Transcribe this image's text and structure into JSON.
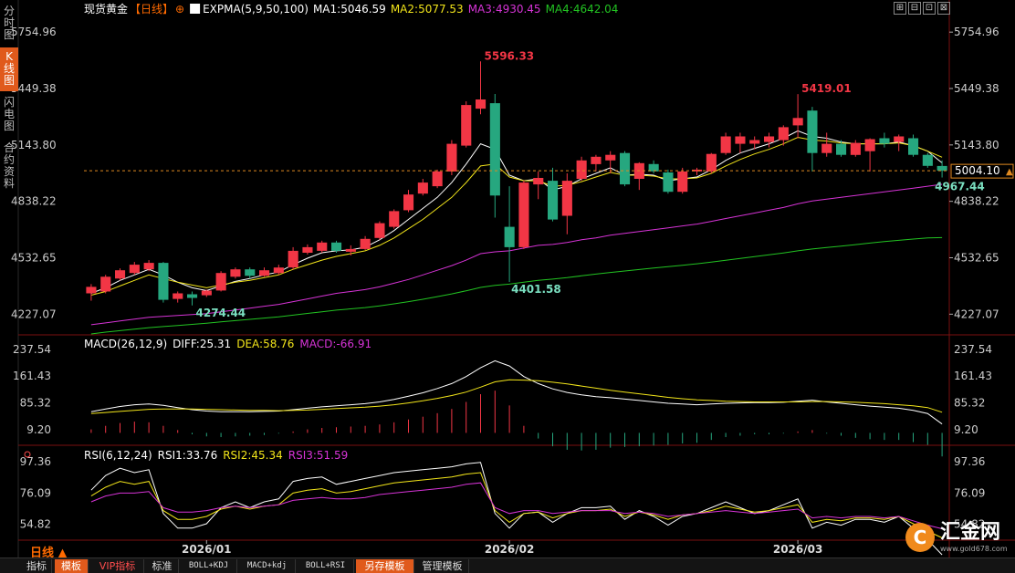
{
  "left_tabs": [
    {
      "label": "分时图",
      "active": false
    },
    {
      "label": "K线图",
      "active": true
    },
    {
      "label": "闪电图",
      "active": false
    },
    {
      "label": "合约资料",
      "active": false
    }
  ],
  "header": {
    "instrument": "现货黄金",
    "period_tag": "【日线】",
    "add_symbol": "⊕",
    "ind_main": "EXPMA(5,9,50,100)",
    "ma1": "MA1:5046.59",
    "ma2": "MA2:5077.53",
    "ma3": "MA3:4930.45",
    "ma4": "MA4:4642.04"
  },
  "toolbar_icons": [
    "⊞",
    "⊟",
    "⊡",
    "⊠"
  ],
  "colors": {
    "up": "#f23645",
    "down": "#26a77f",
    "ma1": "#ffffff",
    "ma2": "#f2e51a",
    "ma3": "#d633d6",
    "ma4": "#22c322",
    "grid": "#3a1010",
    "price_axis": "#cccccc",
    "accent": "#e05a1c"
  },
  "price_axis": [
    "5754.96",
    "5449.38",
    "5143.80",
    "4838.22",
    "4532.65",
    "4227.07"
  ],
  "macd_axis": [
    "237.54",
    "161.43",
    "85.32",
    "9.20"
  ],
  "rsi_axis": [
    "97.36",
    "76.09",
    "54.82"
  ],
  "current_price": "5004.10",
  "annotations": {
    "high": "5596.33",
    "low": "4401.58",
    "high2": "5419.01",
    "low0": "4274.44",
    "last_low": "4967.44"
  },
  "macd_header": {
    "name": "MACD(26,12,9)",
    "diff": "DIFF:25.31",
    "dea": "DEA:58.76",
    "macd": "MACD:-66.91"
  },
  "rsi_header": {
    "name": "RSI(6,12,24)",
    "rsi1": "RSI1:33.76",
    "rsi2": "RSI2:45.34",
    "rsi3": "RSI3:51.59"
  },
  "x_labels": [
    {
      "label": "2026/01",
      "index": 8
    },
    {
      "label": "2026/02",
      "index": 29
    },
    {
      "label": "2026/03",
      "index": 49
    }
  ],
  "period_label": "日线 ▲",
  "bottom_buttons": [
    {
      "label": "指标",
      "style": "plain"
    },
    {
      "label": "模板",
      "style": "orange"
    },
    {
      "label": "VIP指标",
      "style": "vip"
    },
    {
      "label": "标准",
      "style": "plain"
    },
    {
      "label": "BOLL+KDJ",
      "style": "small"
    },
    {
      "label": "MACD+kdj",
      "style": "small"
    },
    {
      "label": "BOLL+RSI",
      "style": "small"
    },
    {
      "label": "另存模板",
      "style": "orange"
    },
    {
      "label": "管理模板",
      "style": "plain"
    }
  ],
  "logo": {
    "name": "汇金网",
    "url": "www.gold678.com"
  },
  "chart_data": {
    "type": "candlestick",
    "ylim": [
      4120,
      5830
    ],
    "candles": [
      {
        "o": 4340,
        "h": 4390,
        "l": 4300,
        "c": 4375
      },
      {
        "o": 4350,
        "h": 4440,
        "l": 4340,
        "c": 4430
      },
      {
        "o": 4420,
        "h": 4475,
        "l": 4410,
        "c": 4465
      },
      {
        "o": 4450,
        "h": 4510,
        "l": 4440,
        "c": 4495
      },
      {
        "o": 4470,
        "h": 4520,
        "l": 4460,
        "c": 4505
      },
      {
        "o": 4505,
        "h": 4510,
        "l": 4290,
        "c": 4305
      },
      {
        "o": 4310,
        "h": 4350,
        "l": 4290,
        "c": 4340
      },
      {
        "o": 4335,
        "h": 4350,
        "l": 4274.44,
        "c": 4315
      },
      {
        "o": 4330,
        "h": 4360,
        "l": 4320,
        "c": 4355
      },
      {
        "o": 4355,
        "h": 4460,
        "l": 4350,
        "c": 4450
      },
      {
        "o": 4430,
        "h": 4480,
        "l": 4420,
        "c": 4470
      },
      {
        "o": 4470,
        "h": 4480,
        "l": 4420,
        "c": 4435
      },
      {
        "o": 4435,
        "h": 4480,
        "l": 4430,
        "c": 4465
      },
      {
        "o": 4450,
        "h": 4495,
        "l": 4440,
        "c": 4480
      },
      {
        "o": 4480,
        "h": 4590,
        "l": 4470,
        "c": 4570
      },
      {
        "o": 4560,
        "h": 4605,
        "l": 4550,
        "c": 4590
      },
      {
        "o": 4570,
        "h": 4625,
        "l": 4560,
        "c": 4615
      },
      {
        "o": 4615,
        "h": 4625,
        "l": 4560,
        "c": 4570
      },
      {
        "o": 4565,
        "h": 4600,
        "l": 4545,
        "c": 4580
      },
      {
        "o": 4580,
        "h": 4650,
        "l": 4575,
        "c": 4635
      },
      {
        "o": 4640,
        "h": 4730,
        "l": 4630,
        "c": 4720
      },
      {
        "o": 4700,
        "h": 4795,
        "l": 4690,
        "c": 4785
      },
      {
        "o": 4790,
        "h": 4900,
        "l": 4780,
        "c": 4875
      },
      {
        "o": 4880,
        "h": 4960,
        "l": 4870,
        "c": 4940
      },
      {
        "o": 4920,
        "h": 5010,
        "l": 4910,
        "c": 5000
      },
      {
        "o": 5000,
        "h": 5170,
        "l": 4980,
        "c": 5150
      },
      {
        "o": 5140,
        "h": 5380,
        "l": 5130,
        "c": 5360
      },
      {
        "o": 5340,
        "h": 5596.33,
        "l": 5310,
        "c": 5390
      },
      {
        "o": 5370,
        "h": 5420,
        "l": 4750,
        "c": 4870
      },
      {
        "o": 4700,
        "h": 4920,
        "l": 4401.58,
        "c": 4590
      },
      {
        "o": 4590,
        "h": 4950,
        "l": 4580,
        "c": 4940
      },
      {
        "o": 4930,
        "h": 5000,
        "l": 4850,
        "c": 4965
      },
      {
        "o": 4950,
        "h": 5020,
        "l": 4730,
        "c": 4740
      },
      {
        "o": 4760,
        "h": 4990,
        "l": 4660,
        "c": 4950
      },
      {
        "o": 4960,
        "h": 5080,
        "l": 4950,
        "c": 5060
      },
      {
        "o": 5040,
        "h": 5090,
        "l": 5000,
        "c": 5080
      },
      {
        "o": 5060,
        "h": 5110,
        "l": 4990,
        "c": 5090
      },
      {
        "o": 5100,
        "h": 5110,
        "l": 4920,
        "c": 4930
      },
      {
        "o": 4960,
        "h": 5050,
        "l": 4900,
        "c": 5045
      },
      {
        "o": 5040,
        "h": 5060,
        "l": 4990,
        "c": 5000
      },
      {
        "o": 4995,
        "h": 5010,
        "l": 4880,
        "c": 4890
      },
      {
        "o": 4890,
        "h": 5020,
        "l": 4880,
        "c": 5000
      },
      {
        "o": 5000,
        "h": 5020,
        "l": 4980,
        "c": 5010
      },
      {
        "o": 5000,
        "h": 5100,
        "l": 4990,
        "c": 5095
      },
      {
        "o": 5100,
        "h": 5210,
        "l": 5090,
        "c": 5190
      },
      {
        "o": 5150,
        "h": 5210,
        "l": 5100,
        "c": 5190
      },
      {
        "o": 5150,
        "h": 5190,
        "l": 5120,
        "c": 5170
      },
      {
        "o": 5160,
        "h": 5210,
        "l": 5130,
        "c": 5190
      },
      {
        "o": 5170,
        "h": 5250,
        "l": 5140,
        "c": 5240
      },
      {
        "o": 5250,
        "h": 5419.01,
        "l": 5180,
        "c": 5290
      },
      {
        "o": 5330,
        "h": 5350,
        "l": 5000,
        "c": 5100
      },
      {
        "o": 5100,
        "h": 5210,
        "l": 5080,
        "c": 5150
      },
      {
        "o": 5150,
        "h": 5170,
        "l": 5080,
        "c": 5090
      },
      {
        "o": 5090,
        "h": 5170,
        "l": 5080,
        "c": 5155
      },
      {
        "o": 5110,
        "h": 5180,
        "l": 5000,
        "c": 5175
      },
      {
        "o": 5180,
        "h": 5210,
        "l": 5130,
        "c": 5150
      },
      {
        "o": 5160,
        "h": 5200,
        "l": 5110,
        "c": 5190
      },
      {
        "o": 5180,
        "h": 5200,
        "l": 5080,
        "c": 5090
      },
      {
        "o": 5090,
        "h": 5100,
        "l": 5020,
        "c": 5030
      },
      {
        "o": 5030,
        "h": 5060,
        "l": 4967.44,
        "c": 5004.1
      }
    ],
    "ma_lines": [
      {
        "name": "MA1",
        "color": "#ffffff",
        "values": [
          4340,
          4370,
          4410,
          4440,
          4470,
          4440,
          4400,
          4370,
          4355,
          4380,
          4405,
          4420,
          4440,
          4455,
          4495,
          4530,
          4560,
          4570,
          4575,
          4590,
          4630,
          4680,
          4740,
          4800,
          4860,
          4940,
          5040,
          5150,
          5120,
          4980,
          4950,
          4960,
          4900,
          4920,
          4960,
          4990,
          5020,
          4980,
          4985,
          4980,
          4950,
          4960,
          4970,
          5010,
          5060,
          5100,
          5125,
          5150,
          5180,
          5220,
          5190,
          5180,
          5160,
          5150,
          5150,
          5150,
          5160,
          5140,
          5110,
          5046.59
        ]
      },
      {
        "name": "MA2",
        "color": "#f2e51a",
        "values": [
          4330,
          4350,
          4380,
          4410,
          4440,
          4420,
          4400,
          4385,
          4370,
          4385,
          4400,
          4410,
          4425,
          4440,
          4470,
          4495,
          4520,
          4540,
          4555,
          4570,
          4600,
          4640,
          4690,
          4740,
          4800,
          4860,
          4940,
          5030,
          5040,
          4970,
          4950,
          4950,
          4920,
          4925,
          4945,
          4970,
          4995,
          4980,
          4980,
          4975,
          4960,
          4960,
          4965,
          4990,
          5030,
          5065,
          5095,
          5120,
          5150,
          5185,
          5170,
          5165,
          5155,
          5150,
          5150,
          5150,
          5155,
          5140,
          5110,
          5077.53
        ]
      },
      {
        "name": "MA3",
        "color": "#d633d6",
        "values": [
          4170,
          4180,
          4190,
          4200,
          4210,
          4215,
          4220,
          4225,
          4230,
          4240,
          4250,
          4260,
          4270,
          4280,
          4295,
          4310,
          4325,
          4340,
          4350,
          4360,
          4375,
          4395,
          4415,
          4440,
          4465,
          4490,
          4520,
          4555,
          4565,
          4570,
          4585,
          4600,
          4605,
          4615,
          4630,
          4640,
          4655,
          4665,
          4675,
          4685,
          4695,
          4705,
          4715,
          4730,
          4745,
          4760,
          4775,
          4790,
          4805,
          4825,
          4840,
          4850,
          4860,
          4870,
          4880,
          4890,
          4900,
          4910,
          4920,
          4930.45
        ]
      },
      {
        "name": "MA4",
        "color": "#22c322",
        "values": [
          4120,
          4130,
          4138,
          4146,
          4154,
          4160,
          4166,
          4172,
          4178,
          4185,
          4192,
          4199,
          4206,
          4213,
          4222,
          4231,
          4240,
          4249,
          4256,
          4263,
          4272,
          4283,
          4295,
          4308,
          4322,
          4337,
          4354,
          4372,
          4383,
          4390,
          4400,
          4410,
          4417,
          4425,
          4435,
          4444,
          4453,
          4461,
          4469,
          4477,
          4484,
          4492,
          4500,
          4509,
          4519,
          4529,
          4539,
          4549,
          4559,
          4570,
          4580,
          4588,
          4596,
          4604,
          4612,
          4620,
          4627,
          4634,
          4640,
          4642.04
        ]
      }
    ],
    "macd": {
      "ylim": [
        -30,
        250
      ],
      "diff": [
        60,
        68,
        75,
        80,
        82,
        78,
        72,
        66,
        62,
        60,
        60,
        60,
        61,
        62,
        66,
        70,
        74,
        77,
        80,
        83,
        88,
        95,
        104,
        114,
        126,
        140,
        160,
        185,
        205,
        190,
        160,
        140,
        125,
        115,
        108,
        103,
        100,
        96,
        92,
        88,
        84,
        82,
        80,
        82,
        84,
        85,
        86,
        86,
        87,
        90,
        93,
        88,
        84,
        80,
        76,
        73,
        70,
        64,
        55,
        25.31
      ],
      "dea": [
        55,
        58,
        61,
        64,
        67,
        68,
        68,
        68,
        67,
        66,
        65,
        64,
        64,
        63,
        64,
        65,
        67,
        69,
        71,
        73,
        76,
        80,
        85,
        91,
        98,
        106,
        116,
        130,
        145,
        151,
        150,
        148,
        144,
        139,
        133,
        127,
        121,
        116,
        111,
        106,
        101,
        97,
        94,
        92,
        90,
        89,
        88,
        88,
        88,
        88,
        89,
        89,
        88,
        87,
        85,
        83,
        80,
        77,
        72,
        58.76
      ],
      "hist": [
        10,
        20,
        28,
        32,
        30,
        20,
        8,
        -4,
        -10,
        -12,
        -10,
        -8,
        -6,
        -2,
        4,
        10,
        14,
        16,
        18,
        20,
        24,
        30,
        38,
        46,
        56,
        68,
        88,
        110,
        120,
        78,
        20,
        -16,
        -38,
        -48,
        -50,
        -48,
        -42,
        -40,
        -38,
        -36,
        -34,
        -30,
        -28,
        -20,
        -12,
        -8,
        -4,
        -4,
        -2,
        4,
        8,
        -2,
        -8,
        -14,
        -18,
        -20,
        -20,
        -26,
        -34,
        -66.91
      ]
    },
    "rsi": {
      "ylim": [
        45,
        100
      ],
      "rsi1": [
        78,
        88,
        93,
        90,
        92,
        62,
        52,
        52,
        55,
        66,
        70,
        66,
        70,
        72,
        84,
        86,
        87,
        82,
        84,
        86,
        88,
        90,
        91,
        92,
        93,
        94,
        96,
        97,
        62,
        52,
        62,
        63,
        56,
        62,
        66,
        66,
        67,
        58,
        64,
        60,
        54,
        60,
        62,
        66,
        70,
        66,
        62,
        64,
        68,
        72,
        52,
        56,
        54,
        58,
        58,
        56,
        60,
        52,
        44,
        33.76
      ],
      "rsi2": [
        74,
        80,
        84,
        82,
        84,
        64,
        58,
        58,
        60,
        65,
        67,
        65,
        67,
        68,
        76,
        78,
        79,
        76,
        77,
        79,
        81,
        83,
        84,
        85,
        86,
        87,
        89,
        90,
        64,
        56,
        62,
        63,
        59,
        62,
        64,
        64,
        65,
        60,
        63,
        61,
        58,
        61,
        62,
        64,
        67,
        65,
        63,
        64,
        66,
        68,
        56,
        58,
        57,
        59,
        59,
        58,
        60,
        55,
        50,
        45.34
      ],
      "rsi3": [
        70,
        74,
        76,
        76,
        77,
        66,
        63,
        63,
        64,
        66,
        67,
        66,
        67,
        68,
        71,
        72,
        73,
        72,
        72,
        73,
        75,
        76,
        77,
        78,
        79,
        80,
        82,
        83,
        66,
        62,
        64,
        64,
        62,
        63,
        64,
        64,
        64,
        62,
        63,
        62,
        60,
        61,
        62,
        63,
        64,
        63,
        62,
        63,
        64,
        65,
        59,
        60,
        59,
        60,
        60,
        59,
        60,
        57,
        54,
        51.59
      ]
    }
  }
}
